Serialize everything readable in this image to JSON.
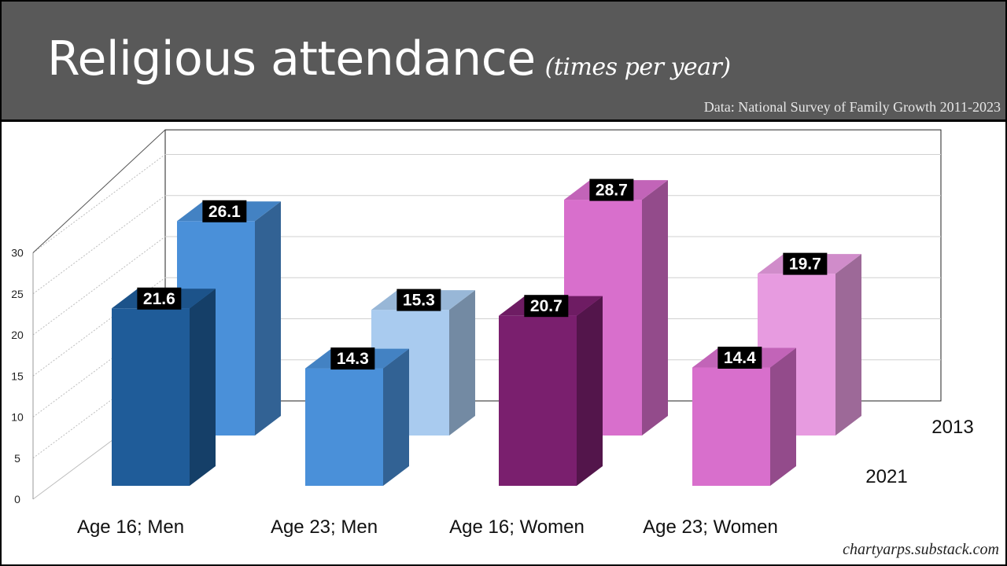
{
  "header": {
    "title": "Religious attendance",
    "subtitle": "(times per year)",
    "source": "Data: National Survey of Family Growth 2011-2023"
  },
  "footer": {
    "credit": "chartyarps.substack.com"
  },
  "chart_data": {
    "type": "bar",
    "style": "3d-grouped-depth",
    "title": "Religious attendance (times per year)",
    "categories": [
      "Age 16; Men",
      "Age 23; Men",
      "Age 16; Women",
      "Age 23; Women"
    ],
    "series": [
      {
        "name": "2021",
        "values": [
          21.6,
          14.3,
          20.7,
          14.4
        ],
        "colors": [
          "#1f5c99",
          "#4a90d9",
          "#7a1f6e",
          "#d86fcc"
        ]
      },
      {
        "name": "2013",
        "values": [
          26.1,
          15.3,
          28.7,
          19.7
        ],
        "colors": [
          "#4a90d9",
          "#a9cbef",
          "#d86fcc",
          "#e79be0"
        ]
      }
    ],
    "y_ticks": [
      "0",
      "5",
      "10",
      "15",
      "20",
      "25",
      "30"
    ],
    "ylim": [
      0,
      30
    ],
    "grid": true,
    "legend": "depth-axis-right"
  }
}
